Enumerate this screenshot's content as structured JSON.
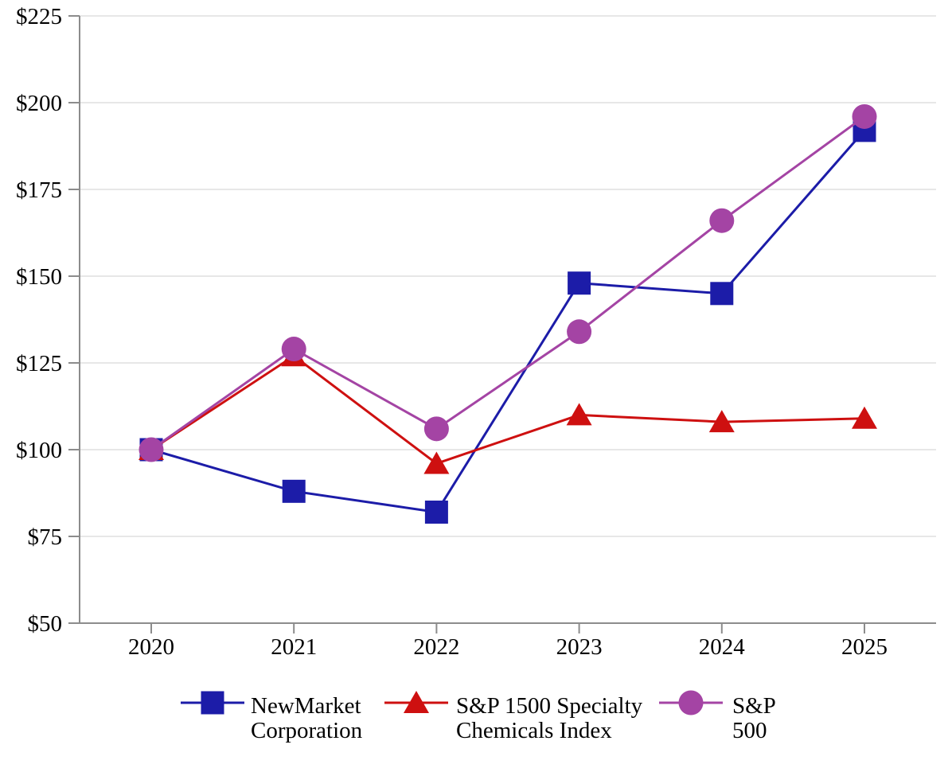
{
  "chart_data": {
    "type": "line",
    "title": "",
    "xlabel": "",
    "ylabel": "",
    "x": [
      "2020",
      "2021",
      "2022",
      "2023",
      "2024",
      "2025"
    ],
    "series": [
      {
        "id": "newmarket",
        "name": "NewMarket Corporation",
        "marker": "square",
        "color": "#1C1CA8",
        "values": [
          100,
          88,
          82,
          148,
          145,
          192
        ]
      },
      {
        "id": "sp1500-specialty-chemicals",
        "name": "S&P 1500 Specialty Chemicals Index",
        "marker": "triangle",
        "color": "#CE1010",
        "values": [
          100,
          127,
          96,
          110,
          108,
          109
        ]
      },
      {
        "id": "sp500",
        "name": "S&P 500",
        "marker": "circle",
        "color": "#A444A4",
        "values": [
          100,
          129,
          106,
          134,
          166,
          196
        ]
      }
    ],
    "ylim": [
      50,
      225
    ],
    "yticks": [
      50,
      75,
      100,
      125,
      150,
      175,
      200,
      225
    ],
    "ytick_labels": [
      "$50",
      "$75",
      "$100",
      "$125",
      "$150",
      "$175",
      "$200",
      "$225"
    ],
    "grid": true,
    "legend_position": "bottom",
    "legend": [
      {
        "label_lines": [
          "NewMarket",
          "Corporation"
        ]
      },
      {
        "label_lines": [
          "S&P 1500 Specialty",
          "Chemicals Index"
        ]
      },
      {
        "label_lines": [
          "S&P",
          "500"
        ]
      }
    ]
  },
  "colors": {
    "axis": "#8C8C8C",
    "gridline": "#E7E7E7",
    "text": "#000000",
    "background": "#FFFFFF"
  }
}
